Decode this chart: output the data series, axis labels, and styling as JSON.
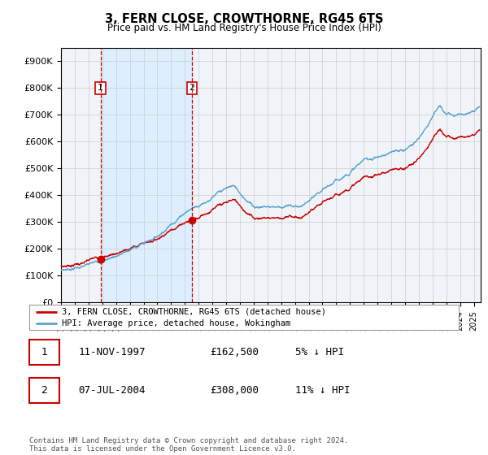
{
  "title": "3, FERN CLOSE, CROWTHORNE, RG45 6TS",
  "subtitle": "Price paid vs. HM Land Registry's House Price Index (HPI)",
  "legend_line1": "3, FERN CLOSE, CROWTHORNE, RG45 6TS (detached house)",
  "legend_line2": "HPI: Average price, detached house, Wokingham",
  "footnote": "Contains HM Land Registry data © Crown copyright and database right 2024.\nThis data is licensed under the Open Government Licence v3.0.",
  "table_rows": [
    {
      "num": "1",
      "date": "11-NOV-1997",
      "price": "£162,500",
      "vs_hpi": "5% ↓ HPI"
    },
    {
      "num": "2",
      "date": "07-JUL-2004",
      "price": "£308,000",
      "vs_hpi": "11% ↓ HPI"
    }
  ],
  "sale1_date_x": 1997.87,
  "sale1_price": 162500,
  "sale2_date_x": 2004.52,
  "sale2_price": 308000,
  "ylabel_ticks": [
    "£0",
    "£100K",
    "£200K",
    "£300K",
    "£400K",
    "£500K",
    "£600K",
    "£700K",
    "£800K",
    "£900K"
  ],
  "ytick_vals": [
    0,
    100000,
    200000,
    300000,
    400000,
    500000,
    600000,
    700000,
    800000,
    900000
  ],
  "xlim": [
    1995.0,
    2025.5
  ],
  "ylim": [
    0,
    950000
  ],
  "hpi_color": "#5ba3d0",
  "price_color": "#cc0000",
  "sale_dot_color": "#cc0000",
  "vline_color": "#cc0000",
  "grid_color": "#cccccc",
  "bg_color": "#ffffff",
  "plot_bg_color": "#f0f4f8",
  "shade_color": "#ddeeff"
}
